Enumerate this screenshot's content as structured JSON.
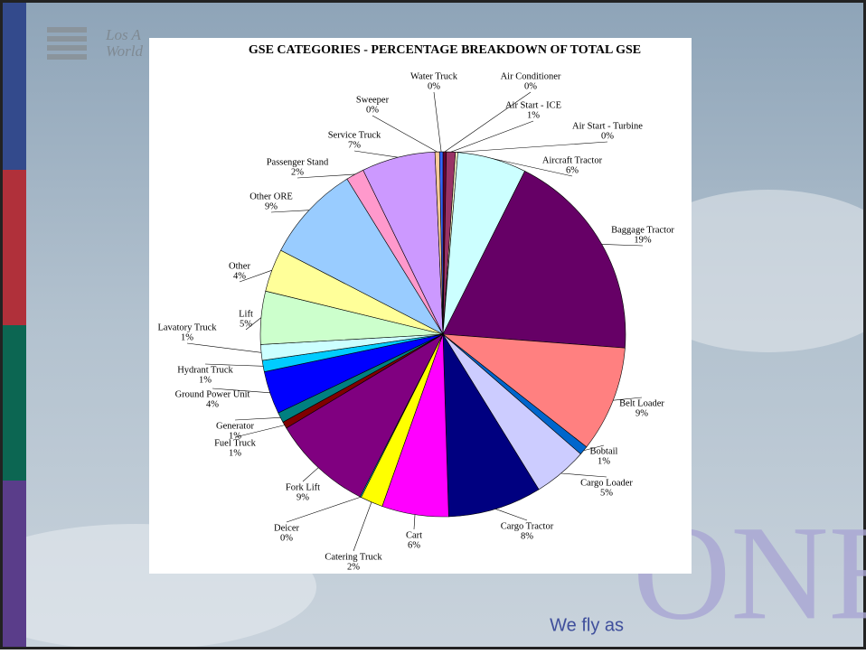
{
  "slide": {
    "logo_line1": "Los A",
    "logo_line2": "World",
    "tagline": "We fly as",
    "brand": "ONE"
  },
  "chart_data": {
    "type": "pie",
    "title": "GSE CATEGORIES - PERCENTAGE BREAKDOWN OF TOTAL GSE",
    "categories": [
      "Air Conditioner",
      "Air Start - ICE",
      "Air Start - Turbine",
      "Aircraft Tractor",
      "Baggage Tractor",
      "Belt Loader",
      "Bobtail",
      "Cargo Loader",
      "Cargo Tractor",
      "Cart",
      "Catering Truck",
      "Deicer",
      "Fork Lift",
      "Fuel Truck",
      "Generator",
      "Ground Power Unit",
      "Hydrant Truck",
      "Lavatory Truck",
      "Lift",
      "Other",
      "Other ORE",
      "Passenger Stand",
      "Service Truck",
      "Sweeper",
      "Water Truck"
    ],
    "values": [
      0.3,
      0.8,
      0.2,
      6.1,
      18.8,
      9.4,
      0.8,
      4.8,
      8.3,
      5.9,
      2.0,
      0.1,
      8.9,
      0.6,
      0.9,
      3.8,
      1.0,
      1.4,
      4.7,
      3.8,
      8.6,
      1.6,
      6.5,
      0.4,
      0.3
    ],
    "value_labels": [
      "0%",
      "1%",
      "0%",
      "6%",
      "19%",
      "9%",
      "1%",
      "5%",
      "8%",
      "6%",
      "2%",
      "0%",
      "9%",
      "1%",
      "1%",
      "4%",
      "1%",
      "1%",
      "5%",
      "4%",
      "9%",
      "2%",
      "7%",
      "0%",
      "0%"
    ],
    "colors": [
      "#660033",
      "#993366",
      "#ffffcc",
      "#ccffff",
      "#660066",
      "#ff8080",
      "#0066cc",
      "#ccccff",
      "#000080",
      "#ff00ff",
      "#ffff00",
      "#00ffff",
      "#800080",
      "#800000",
      "#008080",
      "#0000ff",
      "#00ccff",
      "#ccffff",
      "#ccffcc",
      "#ffff99",
      "#99ccff",
      "#ff99cc",
      "#cc99ff",
      "#ffcc99",
      "#3366ff"
    ]
  }
}
